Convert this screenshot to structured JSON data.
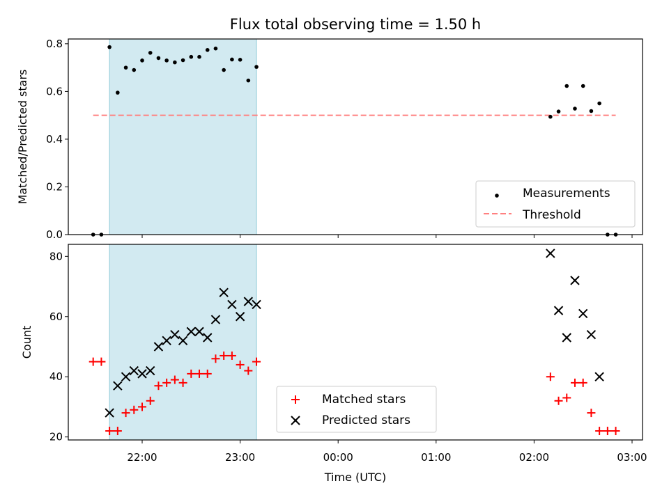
{
  "chart_data": {
    "type": "scatter",
    "title": "Flux total observing time = 1.50 h",
    "xlabel": "Time (UTC)",
    "x_ticks": [
      "22:00",
      "23:00",
      "00:00",
      "01:00",
      "02:00",
      "03:00"
    ],
    "highlight_span": [
      "21:40",
      "23:10"
    ],
    "highlight_color": "#add8e6",
    "panels": [
      {
        "id": "ratio",
        "ylabel": "Matched/Predicted stars",
        "ylim": [
          0,
          0.82
        ],
        "y_ticks": [
          "0.0",
          "0.2",
          "0.4",
          "0.6",
          "0.8"
        ],
        "legend_position": "lower-right",
        "series": [
          {
            "name": "Measurements",
            "marker": "dot",
            "color": "#000000",
            "points": [
              [
                "21:30",
                0.0
              ],
              [
                "21:35",
                0.0
              ],
              [
                "21:40",
                0.786
              ],
              [
                "21:45",
                0.595
              ],
              [
                "21:50",
                0.7
              ],
              [
                "21:55",
                0.69
              ],
              [
                "22:00",
                0.73
              ],
              [
                "22:05",
                0.762
              ],
              [
                "22:10",
                0.74
              ],
              [
                "22:15",
                0.73
              ],
              [
                "22:20",
                0.722
              ],
              [
                "22:25",
                0.731
              ],
              [
                "22:30",
                0.745
              ],
              [
                "22:35",
                0.745
              ],
              [
                "22:40",
                0.774
              ],
              [
                "22:45",
                0.78
              ],
              [
                "22:50",
                0.69
              ],
              [
                "22:55",
                0.734
              ],
              [
                "23:00",
                0.733
              ],
              [
                "23:05",
                0.646
              ],
              [
                "23:10",
                0.703
              ],
              [
                "02:10",
                0.494
              ],
              [
                "02:15",
                0.516
              ],
              [
                "02:20",
                0.623
              ],
              [
                "02:25",
                0.528
              ],
              [
                "02:30",
                0.623
              ],
              [
                "02:35",
                0.518
              ],
              [
                "02:40",
                0.55
              ],
              [
                "02:45",
                0.0
              ],
              [
                "02:50",
                0.0
              ]
            ]
          },
          {
            "name": "Threshold",
            "marker": "dashed-line",
            "color": "#ff8080",
            "value": 0.5,
            "range": [
              "21:30",
              "02:50"
            ]
          }
        ]
      },
      {
        "id": "count",
        "ylabel": "Count",
        "ylim": [
          19,
          84
        ],
        "y_ticks": [
          "20",
          "40",
          "60",
          "80"
        ],
        "legend_position": "lower-center",
        "series": [
          {
            "name": "Matched stars",
            "marker": "plus",
            "color": "#ff0000",
            "points": [
              [
                "21:30",
                45
              ],
              [
                "21:35",
                45
              ],
              [
                "21:40",
                22
              ],
              [
                "21:45",
                22
              ],
              [
                "21:50",
                28
              ],
              [
                "21:55",
                29
              ],
              [
                "22:00",
                30
              ],
              [
                "22:05",
                32
              ],
              [
                "22:10",
                37
              ],
              [
                "22:15",
                38
              ],
              [
                "22:20",
                39
              ],
              [
                "22:25",
                38
              ],
              [
                "22:30",
                41
              ],
              [
                "22:35",
                41
              ],
              [
                "22:40",
                41
              ],
              [
                "22:45",
                46
              ],
              [
                "22:50",
                47
              ],
              [
                "22:55",
                47
              ],
              [
                "23:00",
                44
              ],
              [
                "23:05",
                42
              ],
              [
                "23:10",
                45
              ],
              [
                "02:10",
                40
              ],
              [
                "02:15",
                32
              ],
              [
                "02:20",
                33
              ],
              [
                "02:25",
                38
              ],
              [
                "02:30",
                38
              ],
              [
                "02:35",
                28
              ],
              [
                "02:40",
                22
              ],
              [
                "02:45",
                22
              ],
              [
                "02:50",
                22
              ]
            ]
          },
          {
            "name": "Predicted stars",
            "marker": "x",
            "color": "#000000",
            "points": [
              [
                "21:40",
                28
              ],
              [
                "21:45",
                37
              ],
              [
                "21:50",
                40
              ],
              [
                "21:55",
                42
              ],
              [
                "22:00",
                41
              ],
              [
                "22:05",
                42
              ],
              [
                "22:10",
                50
              ],
              [
                "22:15",
                52
              ],
              [
                "22:20",
                54
              ],
              [
                "22:25",
                52
              ],
              [
                "22:30",
                55
              ],
              [
                "22:35",
                55
              ],
              [
                "22:40",
                53
              ],
              [
                "22:45",
                59
              ],
              [
                "22:50",
                68
              ],
              [
                "22:55",
                64
              ],
              [
                "23:00",
                60
              ],
              [
                "23:05",
                65
              ],
              [
                "23:10",
                64
              ],
              [
                "02:10",
                81
              ],
              [
                "02:15",
                62
              ],
              [
                "02:20",
                53
              ],
              [
                "02:25",
                72
              ],
              [
                "02:30",
                61
              ],
              [
                "02:35",
                54
              ],
              [
                "02:40",
                40
              ]
            ]
          }
        ]
      }
    ]
  }
}
